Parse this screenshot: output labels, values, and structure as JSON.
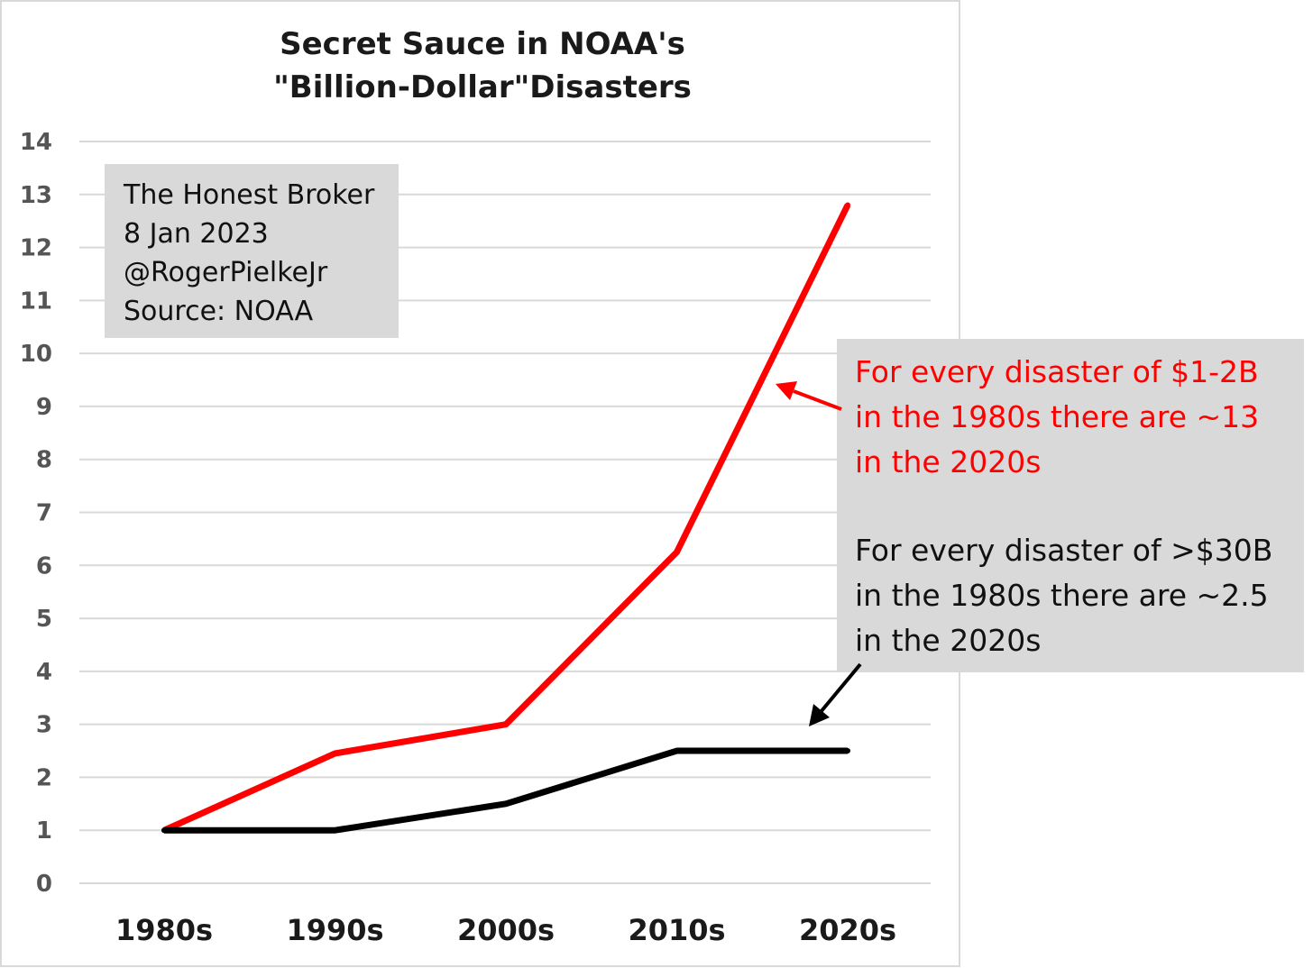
{
  "colors": {
    "red_series": "#ff0000",
    "black_series": "#000000",
    "grid": "#d9d9d9",
    "box_fill": "#d9d9d9",
    "link": "#1a9fe0",
    "frame": "#d9d9d9"
  },
  "title_lines": [
    "Secret Sauce in NOAA's",
    "\"Billion-Dollar\"Disasters"
  ],
  "credit_box": {
    "line1": "The Honest Broker",
    "line2": "8 Jan 2023",
    "handle": "@RogerPielkeJr",
    "source": "Source: NOAA"
  },
  "annotations": {
    "red_lines": [
      "For every disaster of $1-2B",
      "in the 1980s there are ~13",
      "in the 2020s"
    ],
    "black_lines": [
      "For every disaster of >$30B",
      "in the 1980s there are ~2.5",
      "in the 2020s"
    ]
  },
  "chart_data": {
    "type": "line",
    "categories": [
      "1980s",
      "1990s",
      "2000s",
      "2010s",
      "2020s"
    ],
    "series": [
      {
        "key": "red",
        "values": [
          1,
          2.45,
          3,
          6.25,
          12.8
        ]
      },
      {
        "key": "black",
        "values": [
          1,
          1,
          1.5,
          2.5,
          2.5
        ]
      }
    ],
    "ylim": [
      0,
      14
    ],
    "yticks": [
      "0",
      "1",
      "2",
      "3",
      "4",
      "5",
      "6",
      "7",
      "8",
      "9",
      "10",
      "11",
      "12",
      "13",
      "14"
    ],
    "grid": true,
    "legend": "none"
  }
}
